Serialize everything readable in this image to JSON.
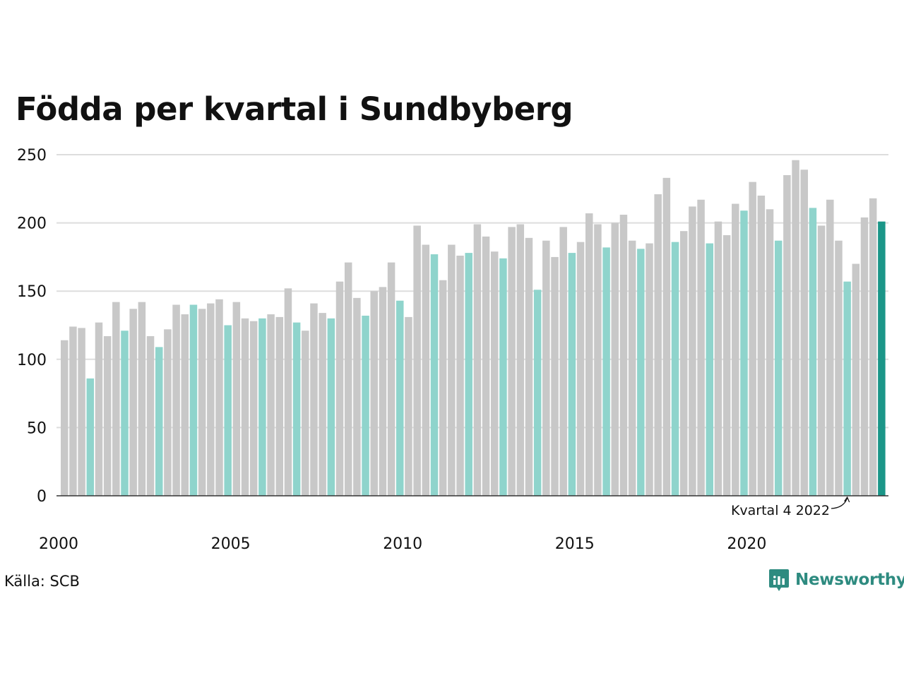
{
  "chart_data": {
    "type": "bar",
    "title": "Födda per kvartal i Sundbyberg",
    "xlabel": "",
    "ylabel": "",
    "ylim": [
      0,
      250
    ],
    "yticks": [
      0,
      50,
      100,
      150,
      200,
      250
    ],
    "xticks": [
      "2000",
      "2005",
      "2010",
      "2015",
      "2020"
    ],
    "grid": true,
    "categories": [
      "2000 Q1",
      "2000 Q2",
      "2000 Q3",
      "2000 Q4",
      "2001 Q1",
      "2001 Q2",
      "2001 Q3",
      "2001 Q4",
      "2002 Q1",
      "2002 Q2",
      "2002 Q3",
      "2002 Q4",
      "2003 Q1",
      "2003 Q2",
      "2003 Q3",
      "2003 Q4",
      "2004 Q1",
      "2004 Q2",
      "2004 Q3",
      "2004 Q4",
      "2005 Q1",
      "2005 Q2",
      "2005 Q3",
      "2005 Q4",
      "2006 Q1",
      "2006 Q2",
      "2006 Q3",
      "2006 Q4",
      "2007 Q1",
      "2007 Q2",
      "2007 Q3",
      "2007 Q4",
      "2008 Q1",
      "2008 Q2",
      "2008 Q3",
      "2008 Q4",
      "2009 Q1",
      "2009 Q2",
      "2009 Q3",
      "2009 Q4",
      "2010 Q1",
      "2010 Q2",
      "2010 Q3",
      "2010 Q4",
      "2011 Q1",
      "2011 Q2",
      "2011 Q3",
      "2011 Q4",
      "2012 Q1",
      "2012 Q2",
      "2012 Q3",
      "2012 Q4",
      "2013 Q1",
      "2013 Q2",
      "2013 Q3",
      "2013 Q4",
      "2014 Q1",
      "2014 Q2",
      "2014 Q3",
      "2014 Q4",
      "2015 Q1",
      "2015 Q2",
      "2015 Q3",
      "2015 Q4",
      "2016 Q1",
      "2016 Q2",
      "2016 Q3",
      "2016 Q4",
      "2017 Q1",
      "2017 Q2",
      "2017 Q3",
      "2017 Q4",
      "2018 Q1",
      "2018 Q2",
      "2018 Q3",
      "2018 Q4",
      "2019 Q1",
      "2019 Q2",
      "2019 Q3",
      "2019 Q4",
      "2020 Q1",
      "2020 Q2",
      "2020 Q3",
      "2020 Q4",
      "2021 Q1",
      "2021 Q2",
      "2021 Q3",
      "2021 Q4",
      "2022 Q1",
      "2022 Q2",
      "2022 Q3",
      "2022 Q4",
      "2023 Q1",
      "2023 Q2",
      "2023 Q3",
      "2023 Q4"
    ],
    "values": [
      114,
      124,
      123,
      86,
      127,
      117,
      142,
      121,
      137,
      142,
      117,
      109,
      122,
      140,
      133,
      140,
      137,
      141,
      144,
      125,
      142,
      130,
      128,
      130,
      133,
      131,
      152,
      127,
      121,
      141,
      134,
      130,
      157,
      171,
      145,
      132,
      150,
      153,
      171,
      143,
      131,
      198,
      184,
      177,
      158,
      184,
      176,
      178,
      199,
      190,
      179,
      174,
      197,
      199,
      189,
      151,
      187,
      175,
      197,
      178,
      186,
      207,
      199,
      182,
      200,
      206,
      187,
      181,
      185,
      221,
      233,
      186,
      194,
      212,
      217,
      185,
      201,
      191,
      214,
      209,
      230,
      220,
      210,
      187,
      235,
      246,
      239,
      211,
      198,
      217,
      187,
      157,
      170,
      204,
      218,
      201
    ],
    "colors": {
      "default": "#c8c8c8",
      "same_quarter": "#8fd4cc",
      "latest": "#1b9688",
      "grid": "#dddddd",
      "axis": "#333333"
    },
    "annotation": {
      "text": "Kvartal 4 2022",
      "target": "2022 Q4"
    }
  },
  "source": "Källa: SCB",
  "brand": {
    "name": "Newsworthy",
    "icon": "newsworthy-logo-icon",
    "color": "#2e8b80"
  }
}
